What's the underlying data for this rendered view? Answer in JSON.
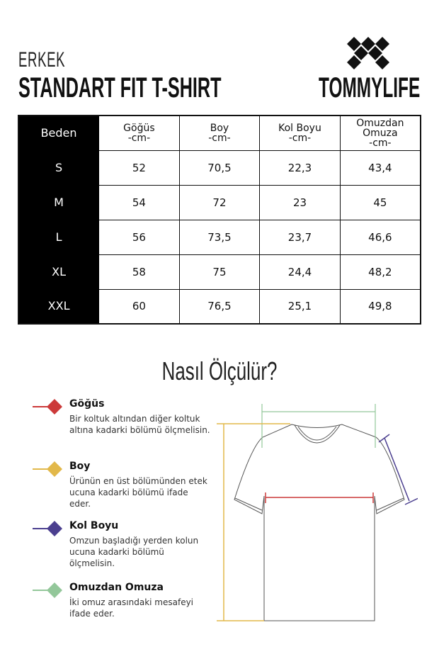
{
  "header": {
    "subtitle": "ERKEK",
    "title": "STANDART FIT T-SHIRT",
    "brand": "TOMMYLIFE"
  },
  "table": {
    "columns": [
      {
        "name": "Beden"
      },
      {
        "name": "Göğüs",
        "unit": "-cm-"
      },
      {
        "name": "Boy",
        "unit": "-cm-"
      },
      {
        "name": "Kol Boyu",
        "unit": "-cm-"
      },
      {
        "name": "Omuzdan",
        "name2": "Omuza",
        "unit": "-cm-"
      }
    ],
    "rows": [
      [
        "S",
        "52",
        "70,5",
        "22,3",
        "43,4"
      ],
      [
        "M",
        "54",
        "72",
        "23",
        "45"
      ],
      [
        "L",
        "56",
        "73,5",
        "23,7",
        "46,6"
      ],
      [
        "XL",
        "58",
        "75",
        "24,4",
        "48,2"
      ],
      [
        "XXL",
        "60",
        "76,5",
        "25,1",
        "49,8"
      ]
    ]
  },
  "how": {
    "title": "Nasıl Ölçülür?",
    "items": [
      {
        "title": "Göğüs",
        "desc": "Bir koltuk altından diğer koltuk altına kadarki bölümü ölçmelisin.",
        "color": "#cc3a3a"
      },
      {
        "title": "Boy",
        "desc": "Ürünün en üst bölümünden etek ucuna kadarki bölümü ifade eder.",
        "color": "#e2b84a"
      },
      {
        "title": "Kol Boyu",
        "desc": "Omzun başladığı yerden kolun ucuna kadarki bölümü ölçmelisin.",
        "color": "#4b3f8f"
      },
      {
        "title": "Omuzdan Omuza",
        "desc": "İki omuz arasındaki mesafeyi ifade eder.",
        "color": "#93c79a"
      }
    ]
  }
}
